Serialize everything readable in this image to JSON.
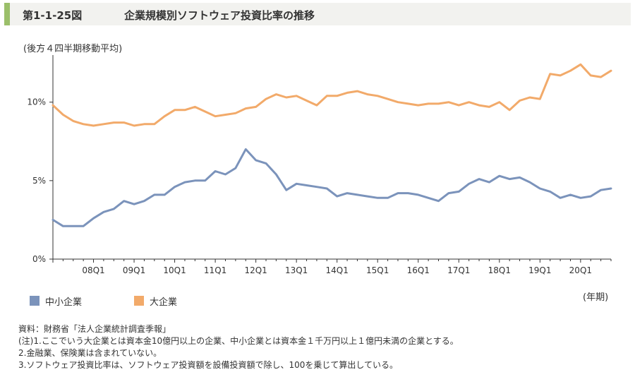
{
  "header": {
    "figure_number": "第1-1-25図",
    "title": "企業規模別ソフトウェア投資比率の推移"
  },
  "colors": {
    "title_accent": "#9bbf6a",
    "title_background": "#f2f2ef",
    "sme_series": "#7b93bb",
    "large_series": "#f2aa6a",
    "axis": "#333333"
  },
  "chart_data": {
    "type": "line",
    "title": "",
    "subtitle": "(後方４四半期移動平均)",
    "xlabel": "",
    "ylabel": "",
    "x_unit": "(年期)",
    "y_ticks": [
      "0%",
      "5%",
      "10%"
    ],
    "ylim": [
      0,
      13
    ],
    "x_start_quarter": "07Q1",
    "x_tick_labels": [
      "08Q1",
      "09Q1",
      "10Q1",
      "11Q1",
      "12Q1",
      "13Q1",
      "14Q1",
      "15Q1",
      "16Q1",
      "17Q1",
      "18Q1",
      "19Q1",
      "20Q1"
    ],
    "grid": false,
    "legend_position": "bottom-left",
    "series": [
      {
        "name": "中小企業",
        "color": "#7b93bb",
        "values": [
          2.5,
          2.1,
          2.1,
          2.1,
          2.6,
          3.0,
          3.2,
          3.7,
          3.5,
          3.7,
          4.1,
          4.1,
          4.6,
          4.9,
          5.0,
          5.0,
          5.6,
          5.4,
          5.8,
          7.0,
          6.3,
          6.1,
          5.4,
          4.4,
          4.8,
          4.7,
          4.6,
          4.5,
          4.0,
          4.2,
          4.1,
          4.0,
          3.9,
          3.9,
          4.2,
          4.2,
          4.1,
          3.9,
          3.7,
          4.2,
          4.3,
          4.8,
          5.1,
          4.9,
          5.3,
          5.1,
          5.2,
          4.9,
          4.5,
          4.3,
          3.9,
          4.1,
          3.9,
          4.0,
          4.4,
          4.5
        ]
      },
      {
        "name": "大企業",
        "color": "#f2aa6a",
        "values": [
          9.8,
          9.2,
          8.8,
          8.6,
          8.5,
          8.6,
          8.7,
          8.7,
          8.5,
          8.6,
          8.6,
          9.1,
          9.5,
          9.5,
          9.7,
          9.4,
          9.1,
          9.2,
          9.3,
          9.6,
          9.7,
          10.2,
          10.5,
          10.3,
          10.4,
          10.1,
          9.8,
          10.4,
          10.4,
          10.6,
          10.7,
          10.5,
          10.4,
          10.2,
          10.0,
          9.9,
          9.8,
          9.9,
          9.9,
          10.0,
          9.8,
          10.0,
          9.8,
          9.7,
          10.0,
          9.5,
          10.1,
          10.3,
          10.2,
          11.8,
          11.7,
          12.0,
          12.4,
          11.7,
          11.6,
          12.0
        ]
      }
    ]
  },
  "legend": {
    "sme_label": "中小企業",
    "large_label": "大企業"
  },
  "notes": {
    "source": "資料：財務省「法人企業統計調査季報」",
    "note1": "(注)1.ここでいう大企業とは資本金10億円以上の企業、中小企業とは資本金１千万円以上１億円未満の企業とする。",
    "note2": "2.金融業、保険業は含まれていない。",
    "note3": "3.ソフトウェア投資比率は、ソフトウェア投資額を設備投資額で除し、100を乗じて算出している。"
  }
}
